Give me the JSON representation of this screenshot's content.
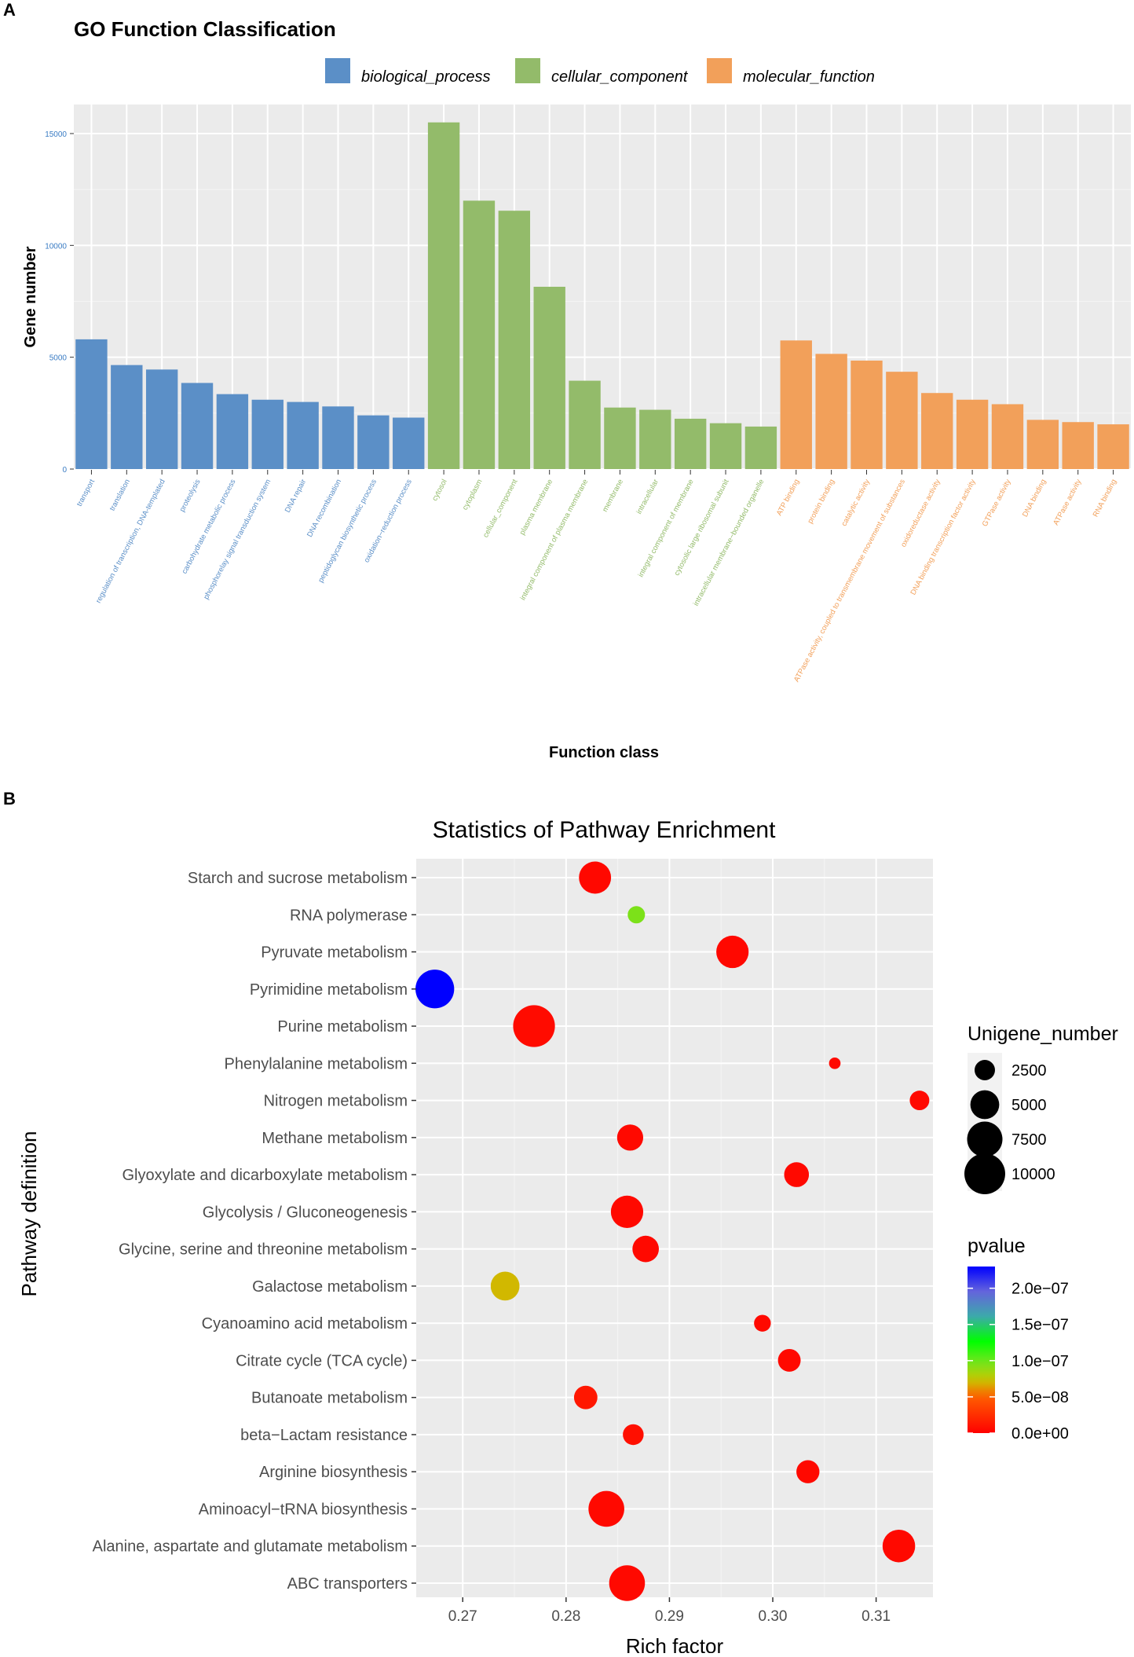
{
  "panel_a": {
    "letter": "A"
  },
  "panel_b": {
    "letter": "B"
  },
  "chart_data": [
    {
      "type": "bar",
      "title": "GO Function Classification",
      "xlabel": "Function class",
      "ylabel": "Gene number",
      "ylim": [
        0,
        16000
      ],
      "yticks": [
        "0",
        "5000",
        "10000",
        "15000"
      ],
      "grid": true,
      "legend_position": "top",
      "legend": [
        {
          "name": "biological_process",
          "color": "#5b8fc7"
        },
        {
          "name": "cellular_component",
          "color": "#93bb6a"
        },
        {
          "name": "molecular_function",
          "color": "#f2a05a"
        }
      ],
      "categories": [
        "transport",
        "translation",
        "regulation of transcription, DNA-templated",
        "proteolysis",
        "carbohydrate metabolic process",
        "phosphorelay signal transduction system",
        "DNA repair",
        "DNA recombination",
        "peptidoglycan biosynthetic process",
        "oxidation−reduction process",
        "cytosol",
        "cytoplasm",
        "cellular_component",
        "plasma membrane",
        "integral component of plasma membrane",
        "membrane",
        "intracellular",
        "integral component of membrane",
        "cytosolic large ribosomal subunit",
        "intracellular membrane−bounded organelle",
        "ATP binding",
        "protein binding",
        "catalytic activity",
        "ATPase activity, coupled to transmembrane movement of substances",
        "oxidoreductase activity",
        "DNA binding transcription factor activity",
        "GTPase activity",
        "DNA binding",
        "ATPase activity",
        "RNA binding"
      ],
      "groups": [
        "biological_process",
        "biological_process",
        "biological_process",
        "biological_process",
        "biological_process",
        "biological_process",
        "biological_process",
        "biological_process",
        "biological_process",
        "biological_process",
        "cellular_component",
        "cellular_component",
        "cellular_component",
        "cellular_component",
        "cellular_component",
        "cellular_component",
        "cellular_component",
        "cellular_component",
        "cellular_component",
        "cellular_component",
        "molecular_function",
        "molecular_function",
        "molecular_function",
        "molecular_function",
        "molecular_function",
        "molecular_function",
        "molecular_function",
        "molecular_function",
        "molecular_function",
        "molecular_function"
      ],
      "values": [
        5800,
        4650,
        4450,
        3850,
        3350,
        3100,
        3000,
        2800,
        2400,
        2300,
        15500,
        12000,
        11550,
        8150,
        3950,
        2750,
        2650,
        2250,
        2050,
        1900,
        5750,
        5150,
        4850,
        4350,
        3400,
        3100,
        2900,
        2200,
        2100,
        2000
      ]
    },
    {
      "type": "scatter",
      "title": "Statistics of Pathway Enrichment",
      "xlabel": "Rich factor",
      "ylabel": "Pathway definition",
      "xlim": [
        0.2655,
        0.3155
      ],
      "xticks": [
        0.27,
        0.28,
        0.29,
        0.3,
        0.31
      ],
      "xtick_labels": [
        "0.27",
        "0.28",
        "0.29",
        "0.30",
        "0.31"
      ],
      "grid": true,
      "size_legend": {
        "title": "Unigene_number",
        "labels": [
          "2500",
          "5000",
          "7500",
          "10000"
        ],
        "values": [
          2500,
          5000,
          7500,
          10000
        ]
      },
      "color_legend": {
        "title": "pvalue",
        "labels": [
          "2.0e−07",
          "1.5e−07",
          "1.0e−07",
          "5.0e−08",
          "0.0e+00"
        ],
        "values": [
          2e-07,
          1.5e-07,
          1e-07,
          5e-08,
          0
        ],
        "min": 0,
        "max": 2.3e-07,
        "colors": [
          "#ff0000",
          "#ff6a00",
          "#c8c800",
          "#6ae61e",
          "#00ff00",
          "#3cb0a0",
          "#6464dc",
          "#0000ff"
        ]
      },
      "categories": [
        "Starch and sucrose metabolism",
        "RNA polymerase",
        "Pyruvate metabolism",
        "Pyrimidine metabolism",
        "Purine metabolism",
        "Phenylalanine metabolism",
        "Nitrogen metabolism",
        "Methane metabolism",
        "Glyoxylate and dicarboxylate metabolism",
        "Glycolysis / Gluconeogenesis",
        "Glycine, serine and threonine metabolism",
        "Galactose metabolism",
        "Cyanoamino acid metabolism",
        "Citrate cycle (TCA cycle)",
        "Butanoate metabolism",
        "beta−Lactam resistance",
        "Arginine biosynthesis",
        "Aminoacyl−tRNA biosynthesis",
        "Alanine, aspartate and glutamate metabolism",
        "ABC transporters"
      ],
      "points": [
        {
          "x": 0.2828,
          "size": 6200,
          "pvalue": 4e-09
        },
        {
          "x": 0.2868,
          "size": 1800,
          "pvalue": 9.5e-08
        },
        {
          "x": 0.2961,
          "size": 6300,
          "pvalue": 4e-09
        },
        {
          "x": 0.2673,
          "size": 9000,
          "pvalue": 2.3e-07
        },
        {
          "x": 0.2769,
          "size": 10500,
          "pvalue": 6e-09
        },
        {
          "x": 0.306,
          "size": 800,
          "pvalue": 5e-09
        },
        {
          "x": 0.3142,
          "size": 2300,
          "pvalue": 5e-09
        },
        {
          "x": 0.2862,
          "size": 4100,
          "pvalue": 5e-09
        },
        {
          "x": 0.3023,
          "size": 3700,
          "pvalue": 5e-09
        },
        {
          "x": 0.2859,
          "size": 6300,
          "pvalue": 5e-09
        },
        {
          "x": 0.2877,
          "size": 4200,
          "pvalue": 5e-09
        },
        {
          "x": 0.2741,
          "size": 5000,
          "pvalue": 7e-08
        },
        {
          "x": 0.299,
          "size": 1700,
          "pvalue": 5e-09
        },
        {
          "x": 0.3016,
          "size": 3100,
          "pvalue": 5e-09
        },
        {
          "x": 0.2819,
          "size": 3300,
          "pvalue": 1.2e-08
        },
        {
          "x": 0.2865,
          "size": 2600,
          "pvalue": 8e-09
        },
        {
          "x": 0.3034,
          "size": 3200,
          "pvalue": 5e-09
        },
        {
          "x": 0.2839,
          "size": 7700,
          "pvalue": 5e-09
        },
        {
          "x": 0.3122,
          "size": 6400,
          "pvalue": 5e-09
        },
        {
          "x": 0.2859,
          "size": 7700,
          "pvalue": 5e-09
        }
      ]
    }
  ]
}
